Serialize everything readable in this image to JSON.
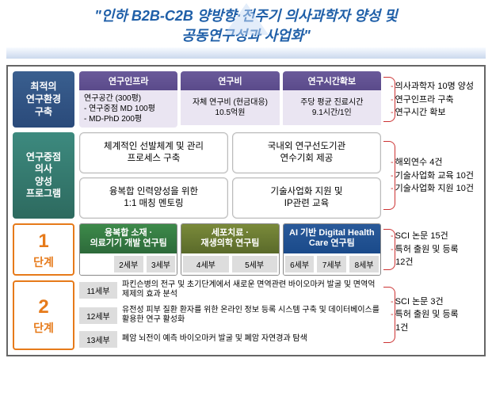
{
  "title_line1": "\"인하 B2B-C2B 양방향·전주기 의사과학자 양성 및",
  "title_line2": "공동연구성과 사업화\"",
  "row1": {
    "label": "최적의\n연구환경\n구축",
    "infra": [
      {
        "hdr": "연구인프라",
        "body": "연구공간 (300평)\n- 연구중점 MD 100평\n- MD-PhD 200평",
        "center": false
      },
      {
        "hdr": "연구비",
        "body": "자체 연구비 (현금대응)\n10.5억원",
        "center": true
      },
      {
        "hdr": "연구시간확보",
        "body": "주당 평균 진료시간\n9.1시간/1인",
        "center": true
      }
    ],
    "side": [
      "의사과학자 10명 양성",
      "연구인프라 구축",
      "연구시간 확보"
    ]
  },
  "row2": {
    "label": "연구중점\n의사\n양성\n프로그램",
    "boxes": [
      "체계적인 선발체계 및 관리\n프로세스 구축",
      "국내외 연구선도기관\n연수기회 제공",
      "융복합 인력양성을 위한\n1:1 매칭 멘토링",
      "기술사업화 지원 및\nIP관련 교육"
    ],
    "side": [
      "해외연수 4건",
      "기술사업화 교육 10건",
      "기술사업화 지원 10건"
    ]
  },
  "row3": {
    "label_big": "1",
    "label_small": "단계",
    "teams": [
      {
        "hdr": "융복합 소재 ·\n의료기기 개발 연구팀",
        "cls": "green-h",
        "subs": [
          "",
          "2세부",
          "3세부"
        ]
      },
      {
        "hdr": "세포치료 ·\n재생의학 연구팀",
        "cls": "olive-h",
        "subs": [
          "4세부",
          "5세부"
        ]
      },
      {
        "hdr": "AI 기반 Digital Health\nCare 연구팀",
        "cls": "blue-h",
        "subs": [
          "6세부",
          "7세부",
          "8세부"
        ]
      }
    ],
    "side": [
      "SCI 논문 15건",
      "특허 출원 및 등록\n12건"
    ]
  },
  "row4": {
    "label_big": "2",
    "label_small": "단계",
    "items": [
      {
        "tag": "11세부",
        "text": "파킨슨병의 전구 및 초기단계에서 새로운 면역관련 바이오마커 발굴 및 면역억제제의 효과 분석"
      },
      {
        "tag": "12세부",
        "text": "유전성 피부 질환 환자를 위한 온라인 정보 등록 시스템 구축 및 데이터베이스를 활용한 연구 활성화"
      },
      {
        "tag": "13세부",
        "text": "폐암 뇌전이 예측 바이오마커 발굴 및 폐암 자연경과 탐색"
      }
    ],
    "side": [
      "SCI 논문 3건",
      "특허 출원 및 등록\n1건"
    ]
  }
}
